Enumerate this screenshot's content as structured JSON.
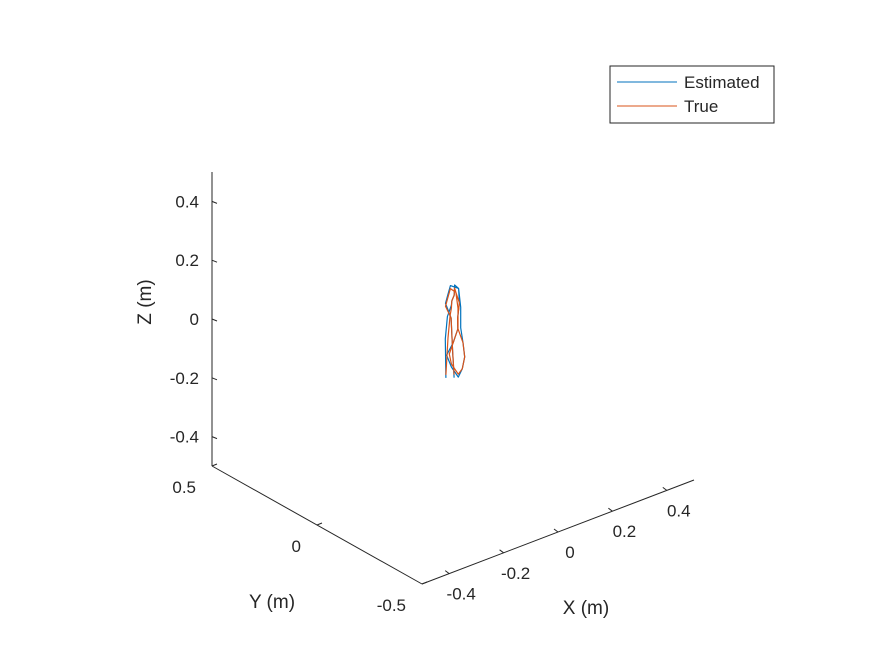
{
  "chart_data": {
    "type": "line",
    "plot_kind": "3d-line",
    "title": "",
    "xlabel": "X (m)",
    "ylabel": "Y (m)",
    "zlabel": "Z (m)",
    "xlim": [
      -0.5,
      0.5
    ],
    "ylim": [
      -0.5,
      0.5
    ],
    "zlim": [
      -0.5,
      0.5
    ],
    "xticks": [
      -0.4,
      -0.2,
      0,
      0.2,
      0.4
    ],
    "xtick_labels": [
      "-0.4",
      "-0.2",
      "0",
      "0.2",
      "0.4"
    ],
    "yticks": [
      -0.5,
      0,
      0.5
    ],
    "ytick_labels": [
      "-0.5",
      "0",
      "0.5"
    ],
    "zticks": [
      -0.4,
      -0.2,
      0,
      0.2,
      0.4
    ],
    "ztick_labels": [
      "-0.4",
      "-0.2",
      "0",
      "0.2",
      "0.4"
    ],
    "grid": false,
    "legend_position": "top-right",
    "series": [
      {
        "name": "Estimated",
        "color": "#0072BD",
        "points": [
          [
            -0.08,
            -0.07,
            -0.12
          ],
          [
            -0.09,
            -0.08,
            0.02
          ],
          [
            -0.09,
            -0.09,
            0.1
          ],
          [
            -0.06,
            -0.07,
            0.12
          ],
          [
            -0.02,
            -0.02,
            0.1
          ],
          [
            0.02,
            0.02,
            0.09
          ],
          [
            0.06,
            0.07,
            0.09
          ],
          [
            0.09,
            0.09,
            0.06
          ],
          [
            0.09,
            0.08,
            0.0
          ],
          [
            0.09,
            0.08,
            -0.07
          ],
          [
            0.06,
            0.03,
            -0.09
          ],
          [
            0.02,
            -0.03,
            -0.1
          ],
          [
            -0.02,
            -0.07,
            -0.11
          ],
          [
            -0.05,
            -0.09,
            -0.12
          ],
          [
            -0.06,
            -0.07,
            -0.09
          ],
          [
            -0.07,
            -0.06,
            -0.05
          ],
          [
            -0.03,
            -0.04,
            -0.03
          ],
          [
            0.01,
            -0.01,
            -0.01
          ],
          [
            0.04,
            0.03,
            0.0
          ],
          [
            0.07,
            0.06,
            0.03
          ],
          [
            0.09,
            0.09,
            0.06
          ],
          [
            0.06,
            0.09,
            0.08
          ],
          [
            0.02,
            0.05,
            0.08
          ],
          [
            -0.02,
            0.01,
            0.08
          ],
          [
            -0.03,
            -0.03,
            0.05
          ],
          [
            -0.04,
            -0.05,
            -0.05
          ],
          [
            -0.05,
            -0.07,
            -0.13
          ]
        ]
      },
      {
        "name": "True",
        "color": "#D95319",
        "points": [
          [
            -0.08,
            -0.07,
            -0.11
          ],
          [
            -0.08,
            -0.08,
            0.02
          ],
          [
            -0.08,
            -0.09,
            0.1
          ],
          [
            -0.06,
            -0.07,
            0.11
          ],
          [
            -0.02,
            -0.02,
            0.1
          ],
          [
            0.02,
            0.02,
            0.09
          ],
          [
            0.06,
            0.07,
            0.08
          ],
          [
            0.08,
            0.09,
            0.05
          ],
          [
            0.08,
            0.08,
            0.0
          ],
          [
            0.08,
            0.08,
            -0.07
          ],
          [
            0.06,
            0.03,
            -0.09
          ],
          [
            0.02,
            -0.03,
            -0.1
          ],
          [
            -0.02,
            -0.07,
            -0.11
          ],
          [
            -0.05,
            -0.09,
            -0.11
          ],
          [
            -0.06,
            -0.07,
            -0.08
          ],
          [
            -0.06,
            -0.06,
            -0.05
          ],
          [
            -0.03,
            -0.04,
            -0.03
          ],
          [
            0.01,
            -0.01,
            -0.01
          ],
          [
            0.04,
            0.03,
            0.0
          ],
          [
            0.07,
            0.06,
            0.03
          ],
          [
            0.08,
            0.09,
            0.05
          ],
          [
            0.06,
            0.09,
            0.07
          ],
          [
            0.02,
            0.05,
            0.07
          ],
          [
            -0.02,
            0.01,
            0.07
          ],
          [
            -0.03,
            -0.03,
            0.05
          ],
          [
            -0.04,
            -0.05,
            -0.05
          ],
          [
            -0.05,
            -0.07,
            -0.12
          ]
        ]
      }
    ]
  }
}
